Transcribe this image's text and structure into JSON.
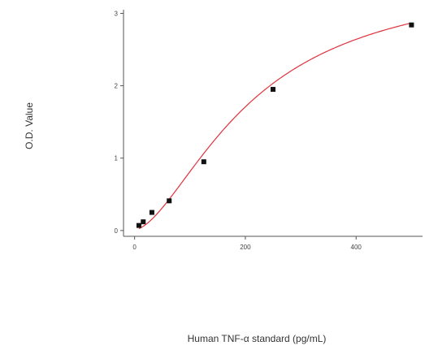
{
  "chart_data": {
    "type": "scatter",
    "title": "",
    "xlabel": "Human TNF-α standard (pg/mL)",
    "ylabel": "O.D. Value",
    "xlim": [
      -20,
      520
    ],
    "ylim": [
      -0.08,
      3.05
    ],
    "x_ticks": [
      0,
      200,
      400
    ],
    "y_ticks": [
      0,
      1,
      2,
      3
    ],
    "grid": false,
    "legend": "none",
    "colors": {
      "points": "#111111",
      "fit_curve": "#e0323c",
      "axis": "#555555"
    },
    "series": [
      {
        "points": [
          {
            "x": 7.8,
            "y": 0.07
          },
          {
            "x": 15.6,
            "y": 0.12
          },
          {
            "x": 31.25,
            "y": 0.25
          },
          {
            "x": 62.5,
            "y": 0.41
          },
          {
            "x": 125,
            "y": 0.95
          },
          {
            "x": 250,
            "y": 1.95
          },
          {
            "x": 500,
            "y": 2.84
          }
        ]
      }
    ],
    "fit_curve": {
      "model": "4PL",
      "A": 0.01,
      "B": 1.65,
      "C": 210,
      "D": 3.55
    }
  }
}
